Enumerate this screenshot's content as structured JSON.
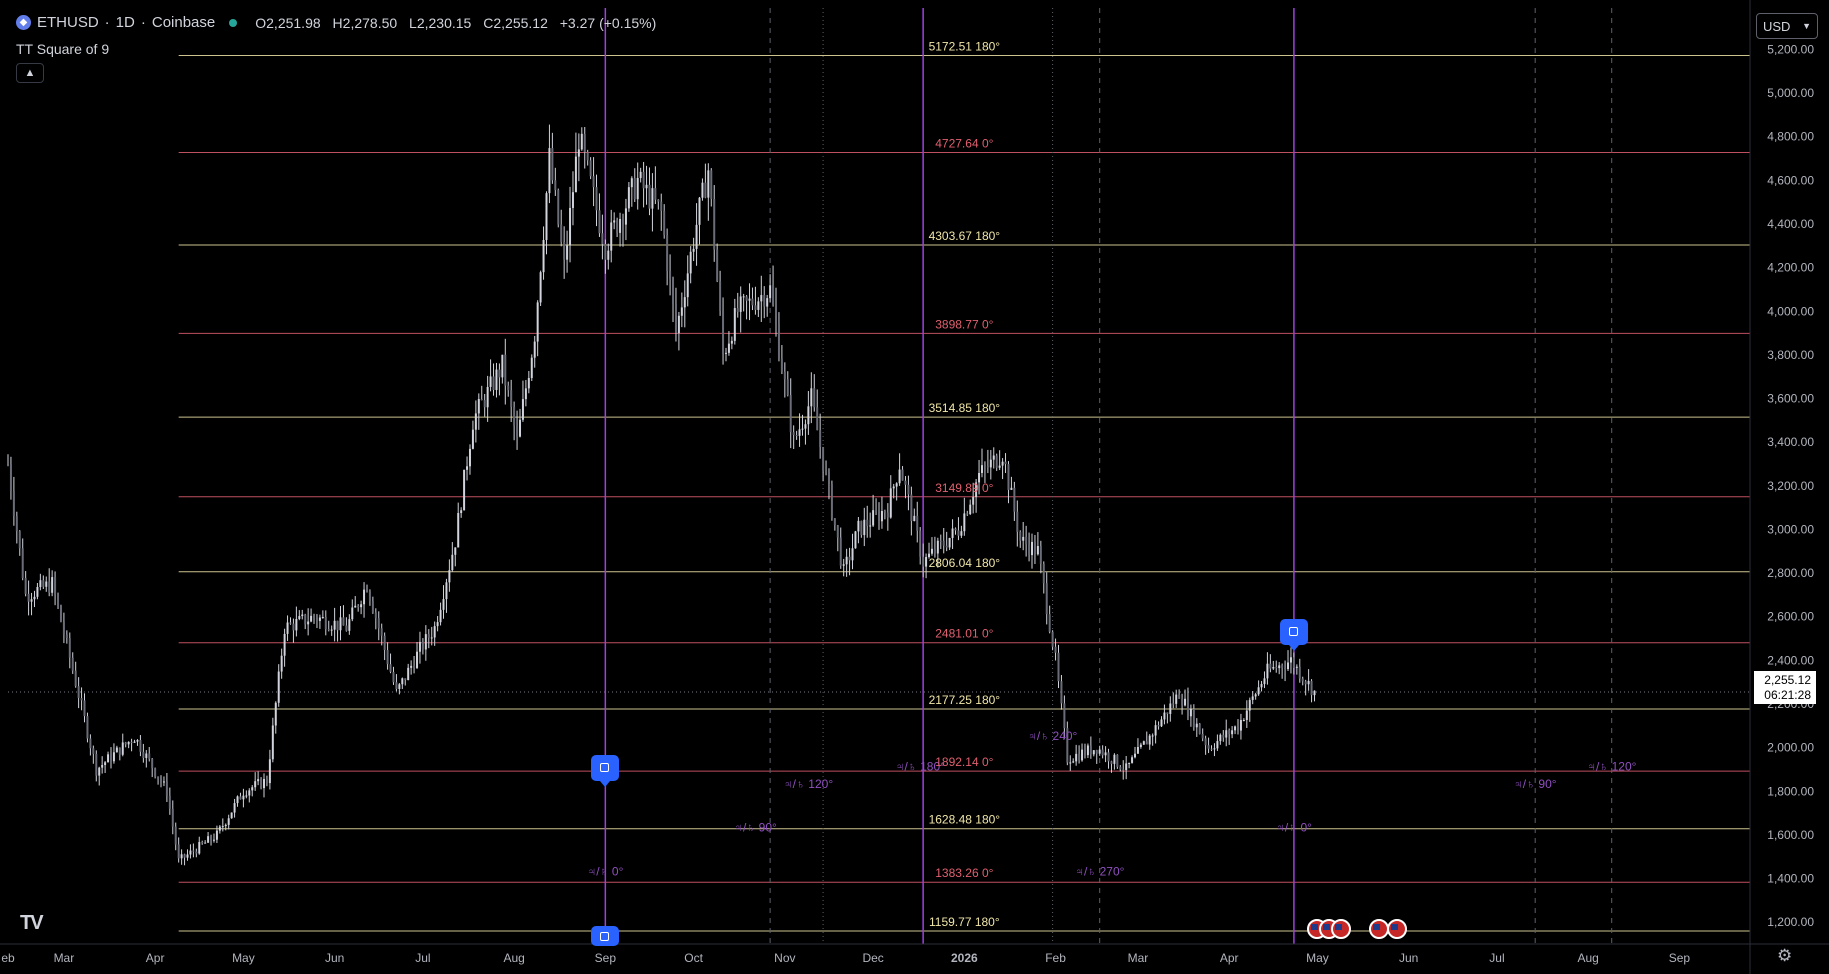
{
  "header": {
    "symbol": "ETHUSD",
    "separator1": "·",
    "interval": "1D",
    "separator2": "·",
    "exchange": "Coinbase",
    "ohlc": {
      "o_label": "O",
      "o_value": "2,251.98",
      "h_label": "H",
      "h_value": "2,278.50",
      "l_label": "L",
      "l_value": "2,230.15",
      "c_label": "C",
      "c_value": "2,255.12",
      "change": "+3.27 (+0.15%)"
    },
    "indicator": "TT Square of 9",
    "collapse_icon": "chevron-up-icon"
  },
  "currency": {
    "label": "USD",
    "icon": "chevron-down-icon"
  },
  "last_price": {
    "value": "2,255.12",
    "countdown": "06:21:28"
  },
  "colors": {
    "background": "#000000",
    "candles": "#d1d4dc",
    "level_180": "#f0e6a8",
    "level_0": "#e06070",
    "cycle_line": "#a040e0",
    "cycle_label": "#9050c0",
    "marker": "#2962ff"
  },
  "chart_data": {
    "type": "candlestick",
    "title": "ETHUSD · 1D · Coinbase",
    "currency": "USD",
    "y_ticks": [
      1200,
      1400,
      1600,
      1800,
      2000,
      2200,
      2400,
      2600,
      2800,
      3000,
      3200,
      3400,
      3600,
      3800,
      4000,
      4200,
      4400,
      4600,
      4800,
      5000,
      5200
    ],
    "y_tick_labels": [
      "1,200.00",
      "1,400.00",
      "1,600.00",
      "1,800.00",
      "2,000.00",
      "2,200.00",
      "2,400.00",
      "2,600.00",
      "2,800.00",
      "3,000.00",
      "3,200.00",
      "3,400.00",
      "3,600.00",
      "3,800.00",
      "4,000.00",
      "4,200.00",
      "4,400.00",
      "4,600.00",
      "4,800.00",
      "5,000.00",
      "5,200.00"
    ],
    "ylim": [
      1100,
      5390
    ],
    "x_range": [
      "2025-02-10",
      "2026-09-25"
    ],
    "x_ticks": [
      {
        "date": "2025-02-10",
        "label": "eb"
      },
      {
        "date": "2025-03-01",
        "label": "Mar"
      },
      {
        "date": "2025-04-01",
        "label": "Apr"
      },
      {
        "date": "2025-05-01",
        "label": "May"
      },
      {
        "date": "2025-06-01",
        "label": "Jun"
      },
      {
        "date": "2025-07-01",
        "label": "Jul"
      },
      {
        "date": "2025-08-01",
        "label": "Aug"
      },
      {
        "date": "2025-09-01",
        "label": "Sep"
      },
      {
        "date": "2025-10-01",
        "label": "Oct"
      },
      {
        "date": "2025-11-01",
        "label": "Nov"
      },
      {
        "date": "2025-12-01",
        "label": "Dec"
      },
      {
        "date": "2026-01-01",
        "label": "2026"
      },
      {
        "date": "2026-02-01",
        "label": "Feb"
      },
      {
        "date": "2026-03-01",
        "label": "Mar"
      },
      {
        "date": "2026-04-01",
        "label": "Apr"
      },
      {
        "date": "2026-05-01",
        "label": "May"
      },
      {
        "date": "2026-06-01",
        "label": "Jun"
      },
      {
        "date": "2026-07-01",
        "label": "Jul"
      },
      {
        "date": "2026-08-01",
        "label": "Aug"
      },
      {
        "date": "2026-09-01",
        "label": "Sep"
      }
    ],
    "close_path": [
      {
        "date": "2025-02-10",
        "close": 3300
      },
      {
        "date": "2025-02-16",
        "close": 2700
      },
      {
        "date": "2025-02-25",
        "close": 2750
      },
      {
        "date": "2025-03-05",
        "close": 2300
      },
      {
        "date": "2025-03-12",
        "close": 1900
      },
      {
        "date": "2025-03-25",
        "close": 2050
      },
      {
        "date": "2025-04-05",
        "close": 1800
      },
      {
        "date": "2025-04-09",
        "close": 1480
      },
      {
        "date": "2025-04-22",
        "close": 1600
      },
      {
        "date": "2025-05-01",
        "close": 1800
      },
      {
        "date": "2025-05-09",
        "close": 1850
      },
      {
        "date": "2025-05-15",
        "close": 2550
      },
      {
        "date": "2025-05-25",
        "close": 2600
      },
      {
        "date": "2025-06-05",
        "close": 2550
      },
      {
        "date": "2025-06-12",
        "close": 2750
      },
      {
        "date": "2025-06-22",
        "close": 2250
      },
      {
        "date": "2025-06-30",
        "close": 2450
      },
      {
        "date": "2025-07-05",
        "close": 2550
      },
      {
        "date": "2025-07-12",
        "close": 2950
      },
      {
        "date": "2025-07-18",
        "close": 3500
      },
      {
        "date": "2025-07-28",
        "close": 3750
      },
      {
        "date": "2025-08-02",
        "close": 3400
      },
      {
        "date": "2025-08-08",
        "close": 3900
      },
      {
        "date": "2025-08-13",
        "close": 4700
      },
      {
        "date": "2025-08-18",
        "close": 4200
      },
      {
        "date": "2025-08-23",
        "close": 4800
      },
      {
        "date": "2025-09-01",
        "close": 4300
      },
      {
        "date": "2025-09-12",
        "close": 4600
      },
      {
        "date": "2025-09-20",
        "close": 4450
      },
      {
        "date": "2025-09-25",
        "close": 3900
      },
      {
        "date": "2025-10-02",
        "close": 4400
      },
      {
        "date": "2025-10-06",
        "close": 4650
      },
      {
        "date": "2025-10-11",
        "close": 3800
      },
      {
        "date": "2025-10-16",
        "close": 4000
      },
      {
        "date": "2025-10-27",
        "close": 4100
      },
      {
        "date": "2025-11-04",
        "close": 3400
      },
      {
        "date": "2025-11-10",
        "close": 3600
      },
      {
        "date": "2025-11-21",
        "close": 2800
      },
      {
        "date": "2025-11-26",
        "close": 3000
      },
      {
        "date": "2025-12-06",
        "close": 3100
      },
      {
        "date": "2025-12-10",
        "close": 3300
      },
      {
        "date": "2025-12-18",
        "close": 2850
      },
      {
        "date": "2025-12-30",
        "close": 3000
      },
      {
        "date": "2026-01-06",
        "close": 3250
      },
      {
        "date": "2026-01-14",
        "close": 3350
      },
      {
        "date": "2026-01-20",
        "close": 2950
      },
      {
        "date": "2026-01-26",
        "close": 2900
      },
      {
        "date": "2026-02-01",
        "close": 2400
      },
      {
        "date": "2026-02-05",
        "close": 1950
      },
      {
        "date": "2026-02-15",
        "close": 2000
      },
      {
        "date": "2026-02-25",
        "close": 1900
      },
      {
        "date": "2026-03-05",
        "close": 2050
      },
      {
        "date": "2026-03-15",
        "close": 2250
      },
      {
        "date": "2026-03-25",
        "close": 2000
      },
      {
        "date": "2026-04-04",
        "close": 2100
      },
      {
        "date": "2026-04-14",
        "close": 2350
      },
      {
        "date": "2026-04-22",
        "close": 2400
      },
      {
        "date": "2026-04-30",
        "close": 2255
      }
    ],
    "levels": [
      {
        "price": 5172.51,
        "label": "5172.51 180°",
        "kind": "180"
      },
      {
        "price": 4727.64,
        "label": "4727.64 0°",
        "kind": "0"
      },
      {
        "price": 4303.67,
        "label": "4303.67 180°",
        "kind": "180"
      },
      {
        "price": 3898.77,
        "label": "3898.77 0°",
        "kind": "0"
      },
      {
        "price": 3514.85,
        "label": "3514.85 180°",
        "kind": "180"
      },
      {
        "price": 3149.89,
        "label": "3149.89 0°",
        "kind": "0"
      },
      {
        "price": 2806.04,
        "label": "2806.04 180°",
        "kind": "180"
      },
      {
        "price": 2481.01,
        "label": "2481.01 0°",
        "kind": "0"
      },
      {
        "price": 2177.25,
        "label": "2177.25 180°",
        "kind": "180"
      },
      {
        "price": 1892.14,
        "label": "1892.14 0°",
        "kind": "0"
      },
      {
        "price": 1628.48,
        "label": "1628.48 180°",
        "kind": "180"
      },
      {
        "price": 1383.26,
        "label": "1383.26 0°",
        "kind": "0"
      },
      {
        "price": 1159.77,
        "label": "1159.77 180°",
        "kind": "180"
      }
    ],
    "levels_start_date": "2025-04-09",
    "time_cycles_solid": [
      "2025-09-01",
      "2025-12-18",
      "2026-04-23"
    ],
    "time_cycles_dashed": [
      "2025-10-27",
      "2026-02-16",
      "2026-07-14",
      "2026-08-09"
    ],
    "time_cycles_dotted": [
      "2025-11-14",
      "2026-01-31"
    ],
    "cycle_labels": [
      {
        "date": "2025-09-01",
        "price": 1415,
        "text": "♃/♄ 0°"
      },
      {
        "date": "2025-10-22",
        "price": 1615,
        "text": "♃/♄ 90°"
      },
      {
        "date": "2025-11-09",
        "price": 1815,
        "text": "♃/♄ 120°"
      },
      {
        "date": "2025-12-17",
        "price": 1895,
        "text": "♃/♄ 180°"
      },
      {
        "date": "2026-01-31",
        "price": 2035,
        "text": "♃/♄ 240°"
      },
      {
        "date": "2026-02-16",
        "price": 1415,
        "text": "♃/♄ 270°"
      },
      {
        "date": "2026-04-23",
        "price": 1615,
        "text": "♃/♄ 0°"
      },
      {
        "date": "2026-07-14",
        "price": 1815,
        "text": "♃/♄ 90°"
      },
      {
        "date": "2026-08-09",
        "price": 1895,
        "text": "♃/♄ 120°"
      }
    ],
    "markers": [
      {
        "date": "2025-09-01",
        "price": 1900,
        "icon": "square-icon"
      },
      {
        "date": "2026-04-23",
        "price": 2470,
        "icon": "square-icon"
      },
      {
        "date": "2025-09-01",
        "price": 1100,
        "icon": "square-icon"
      }
    ],
    "event_flags": [
      "2026-05-01",
      "2026-05-05",
      "2026-05-09",
      "2026-05-22",
      "2026-05-28"
    ],
    "last_close": 2255.12,
    "grid": false
  }
}
